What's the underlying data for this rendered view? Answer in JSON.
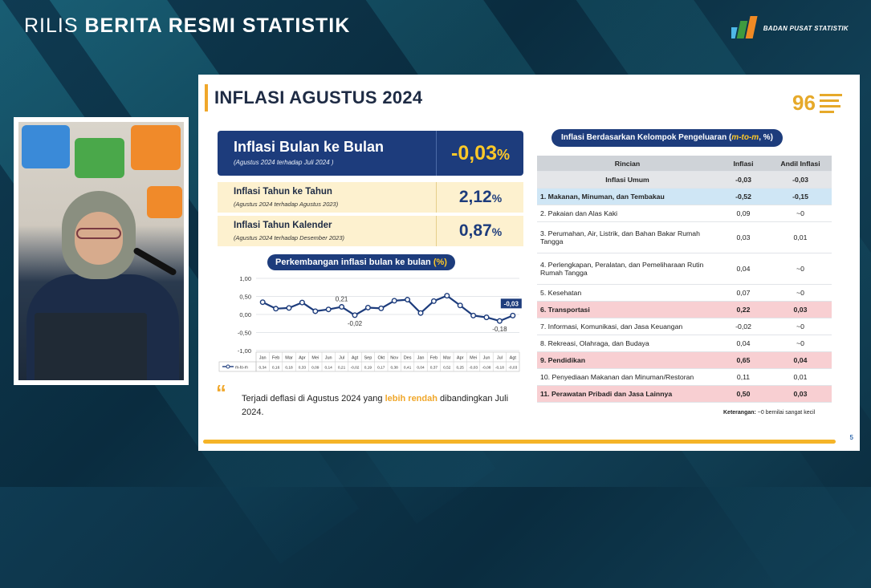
{
  "broadcast": {
    "title_light": "RILIS",
    "title_bold": "BERITA RESMI STATISTIK",
    "logo_text": "BADAN PUSAT STATISTIK"
  },
  "slide": {
    "title": "INFLASI AGUSTUS 2024",
    "monthly": {
      "label": "Inflasi Bulan ke Bulan",
      "sub": "(Agustus 2024 terhadap Juli 2024 )",
      "value": "-0,03",
      "unit": "%"
    },
    "yearly": {
      "label": "Inflasi Tahun ke Tahun",
      "sub": "(Agustus 2024 terhadap Agustus 2023)",
      "value": "2,12",
      "unit": "%"
    },
    "calendar": {
      "label": "Inflasi Tahun Kalender",
      "sub": "(Agustus 2024 terhadap Desember 2023)",
      "value": "0,87",
      "unit": "%"
    },
    "chart_title": "Perkembangan inflasi bulan ke bulan",
    "chart_title_unit": "(%)",
    "quote_mark": "“",
    "quote_pre": "Terjadi deflasi di Agustus 2024 yang ",
    "quote_em": "lebih rendah",
    "quote_post": " dibandingkan Juli 2024.",
    "page_number": "5",
    "table_title": "Inflasi Berdasarkan Kelompok Pengeluaran (",
    "table_title_em": "m-to-m",
    "table_title_end": ", %)",
    "table_headers": [
      "Rincian",
      "Inflasi",
      "Andil Inflasi"
    ],
    "table_rows": [
      {
        "name": "Inflasi Umum",
        "inflasi": "-0,03",
        "andil": "-0,03"
      },
      {
        "name": "1.  Makanan, Minuman, dan Tembakau",
        "inflasi": "-0,52",
        "andil": "-0,15"
      },
      {
        "name": "2.  Pakaian dan Alas Kaki",
        "inflasi": "0,09",
        "andil": "~0"
      },
      {
        "name": "3.  Perumahan, Air, Listrik, dan Bahan Bakar Rumah Tangga",
        "inflasi": "0,03",
        "andil": "0,01"
      },
      {
        "name": "4.  Perlengkapan, Peralatan, dan Pemeliharaan Rutin Rumah Tangga",
        "inflasi": "0,04",
        "andil": "~0"
      },
      {
        "name": "5.  Kesehatan",
        "inflasi": "0,07",
        "andil": "~0"
      },
      {
        "name": "6.  Transportasi",
        "inflasi": "0,22",
        "andil": "0,03"
      },
      {
        "name": "7.  Informasi, Komunikasi, dan Jasa Keuangan",
        "inflasi": "-0,02",
        "andil": "~0"
      },
      {
        "name": "8.  Rekreasi, Olahraga, dan Budaya",
        "inflasi": "0,04",
        "andil": "~0"
      },
      {
        "name": "9.  Pendidikan",
        "inflasi": "0,65",
        "andil": "0,04"
      },
      {
        "name": "10.  Penyediaan Makanan dan Minuman/Restoran",
        "inflasi": "0,11",
        "andil": "0,01"
      },
      {
        "name": "11.  Perawatan Pribadi dan Jasa Lainnya",
        "inflasi": "0,50",
        "andil": "0,03"
      }
    ],
    "note_label": "Keterangan:",
    "note_text": " ~0 bernilai sangat kecil"
  },
  "chart_data": {
    "type": "line",
    "categories": [
      "Jan",
      "Feb",
      "Mar",
      "Apr",
      "Mei",
      "Jun",
      "Jul",
      "Agt",
      "Sep",
      "Okt",
      "Nov",
      "Des",
      "Jan",
      "Feb",
      "Mar",
      "Apr",
      "Mei",
      "Jun",
      "Jul",
      "Agt"
    ],
    "series": [
      {
        "name": "m-to-m",
        "values": [
          0.34,
          0.16,
          0.18,
          0.33,
          0.09,
          0.14,
          0.21,
          -0.02,
          0.19,
          0.17,
          0.38,
          0.41,
          0.04,
          0.37,
          0.52,
          0.25,
          -0.03,
          -0.08,
          -0.18,
          -0.03
        ]
      }
    ],
    "value_labels": [
      "0,34",
      "0,16",
      "0,18",
      "0,33",
      "0,09",
      "0,14",
      "0,21",
      "-0,02",
      "0,19",
      "0,17",
      "0,38",
      "0,41",
      "0,04",
      "0,37",
      "0,52",
      "0,25",
      "-0,03",
      "-0,08",
      "-0,18",
      "-0,03"
    ],
    "annotations": [
      {
        "index": 6,
        "text": "0,21"
      },
      {
        "index": 7,
        "text": "-0,02"
      },
      {
        "index": 18,
        "text": "-0,18"
      },
      {
        "index": 19,
        "text": "-0,03"
      }
    ],
    "yticks": [
      "1,00",
      "0,50",
      "0,00",
      "-0,50",
      "-1,00"
    ],
    "ylim": [
      -1,
      1
    ],
    "color": "#1d3c7c"
  }
}
